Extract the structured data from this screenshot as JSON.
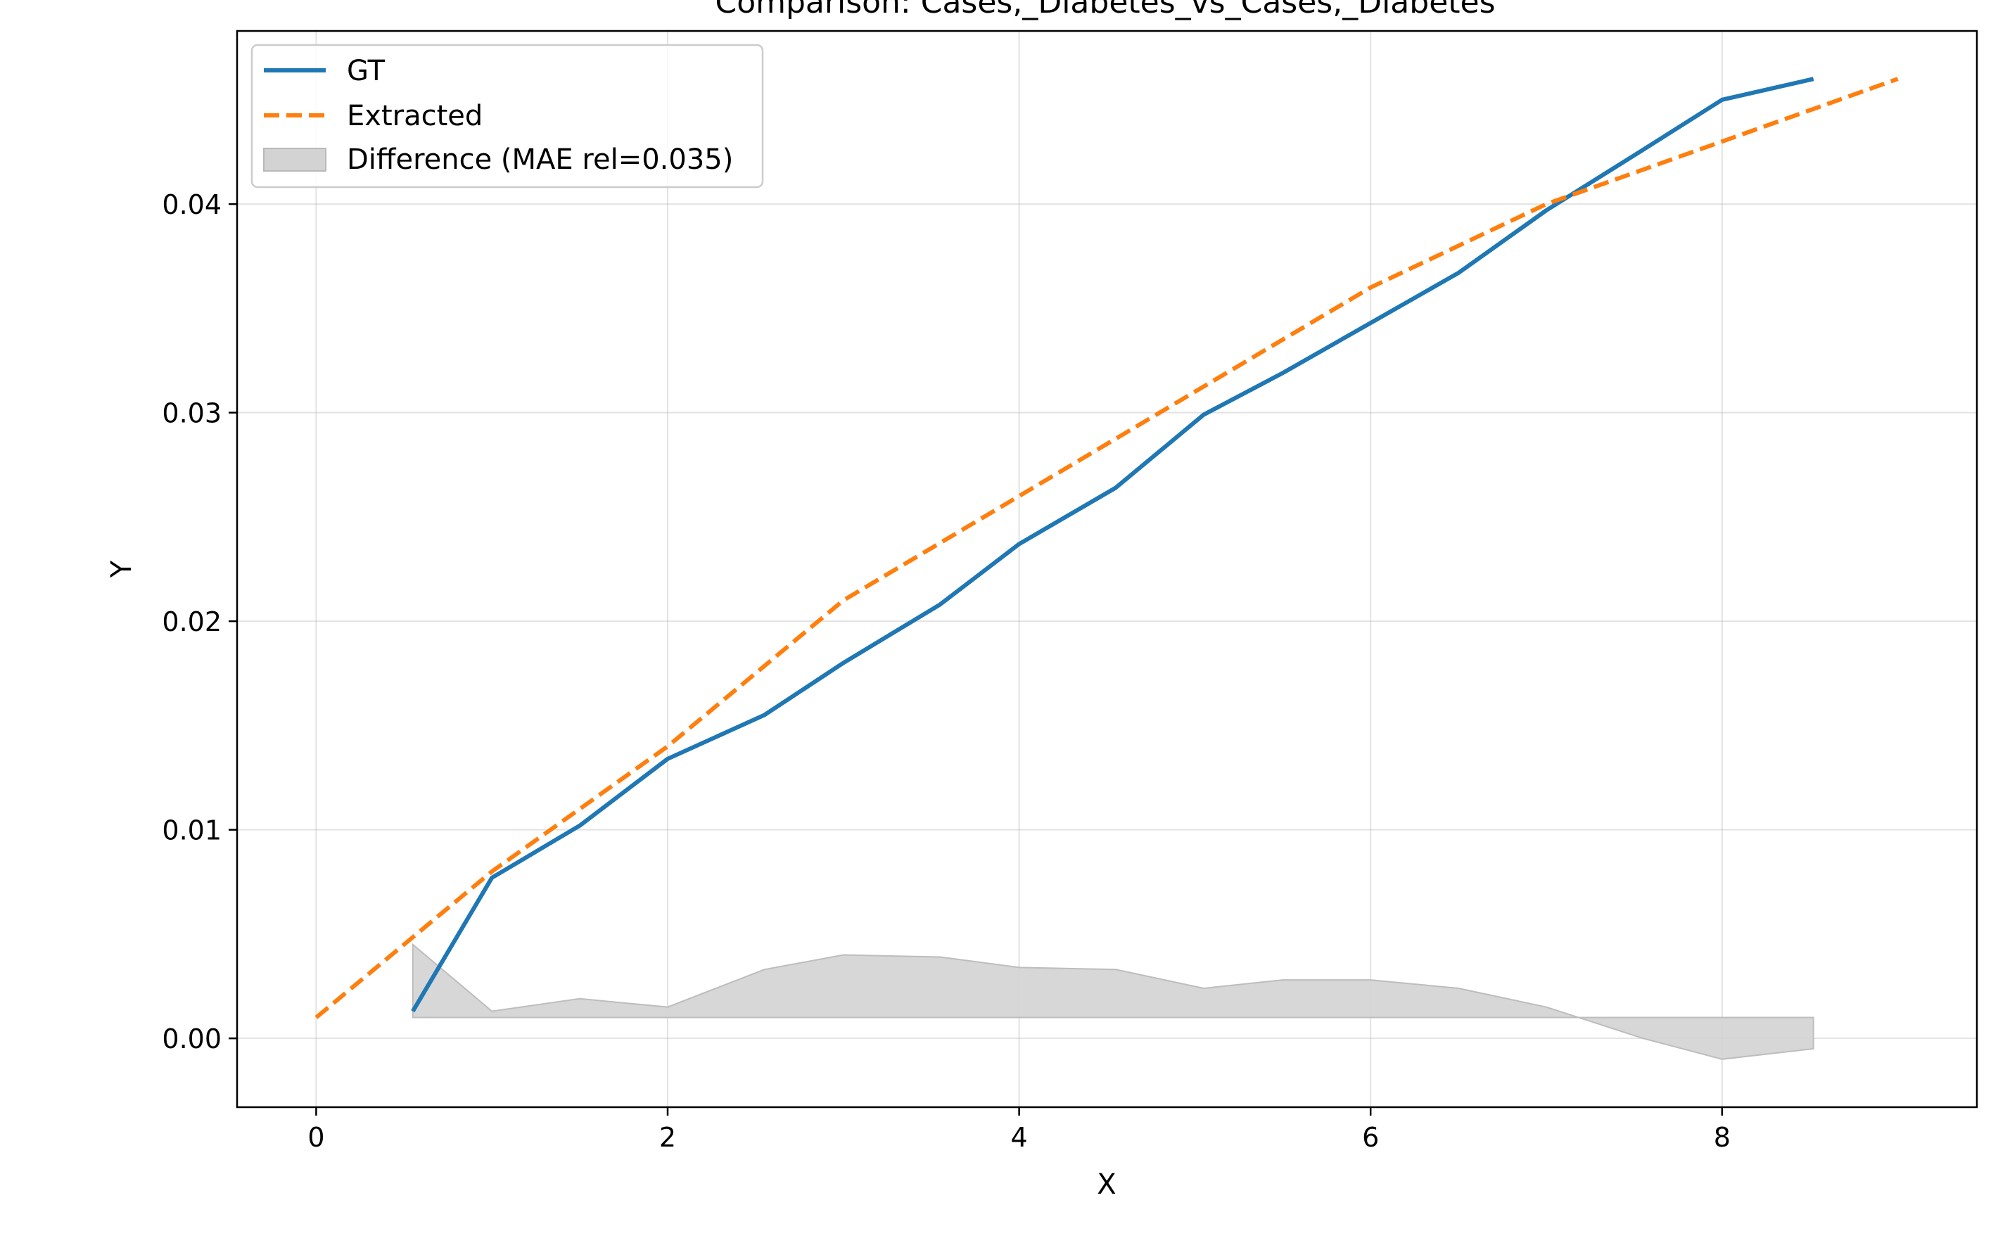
{
  "chart_data": {
    "type": "line",
    "title": "Comparison: Cases,_Diabetes_vs_Cases,_Diabetes",
    "xlabel": "X",
    "ylabel": "Y",
    "xlim": [
      -0.45,
      9.45
    ],
    "ylim": [
      -0.0033,
      0.0483
    ],
    "xticks": [
      0,
      2,
      4,
      6,
      8
    ],
    "xtick_labels": [
      "0",
      "2",
      "4",
      "6",
      "8"
    ],
    "yticks": [
      0.0,
      0.01,
      0.02,
      0.03,
      0.04
    ],
    "ytick_labels": [
      "0.00",
      "0.01",
      "0.02",
      "0.03",
      "0.04"
    ],
    "grid": true,
    "legend_position": "top-left",
    "series": [
      {
        "name": "GT",
        "style": "solid",
        "color": "#1f77b4",
        "x": [
          0.55,
          1.0,
          1.5,
          2.0,
          2.55,
          3.0,
          3.55,
          4.0,
          4.55,
          5.05,
          5.5,
          6.0,
          6.5,
          7.0,
          7.55,
          8.0,
          8.52
        ],
        "y": [
          0.0013,
          0.0077,
          0.0102,
          0.0134,
          0.0155,
          0.018,
          0.0208,
          0.0237,
          0.0264,
          0.0299,
          0.0319,
          0.0343,
          0.0367,
          0.0397,
          0.0426,
          0.045,
          0.046
        ]
      },
      {
        "name": "Extracted",
        "style": "dashed",
        "color": "#ff7f0e",
        "x": [
          0,
          1,
          2,
          3,
          4,
          5,
          6,
          7,
          8,
          9
        ],
        "y": [
          0.001,
          0.008,
          0.014,
          0.021,
          0.026,
          0.031,
          0.036,
          0.04,
          0.043,
          0.046
        ]
      }
    ],
    "difference": {
      "name": "Difference (MAE rel=0.035)",
      "color": "#d3d3d3",
      "baseline": 0.001,
      "x": [
        0.55,
        1.0,
        1.5,
        2.0,
        2.55,
        3.0,
        3.55,
        4.0,
        4.55,
        5.05,
        5.5,
        6.0,
        6.5,
        7.0,
        7.55,
        8.0,
        8.52
      ],
      "y": [
        0.0045,
        0.0013,
        0.0019,
        0.0015,
        0.0033,
        0.004,
        0.0039,
        0.0034,
        0.0033,
        0.0024,
        0.0028,
        0.0028,
        0.0024,
        0.0015,
        0.0,
        -0.001,
        -0.0005
      ]
    }
  }
}
